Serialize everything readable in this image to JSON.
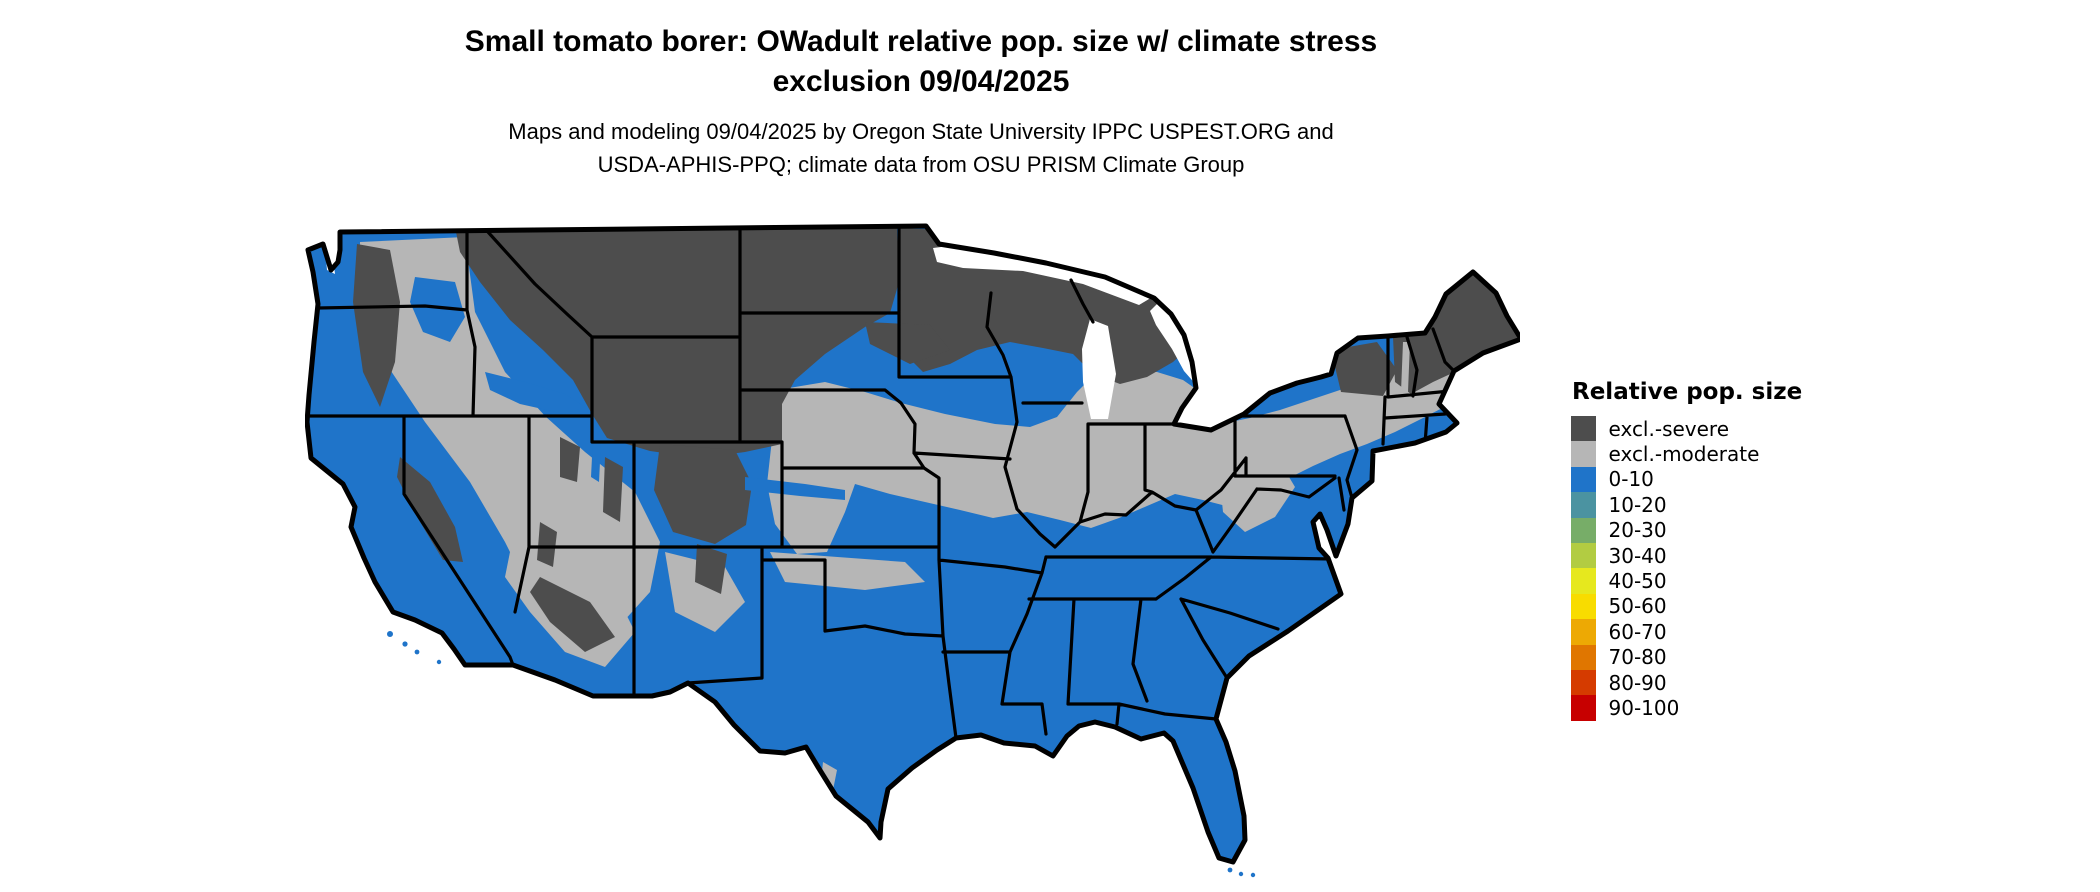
{
  "header": {
    "title_line1": "Small tomato borer: OWadult relative pop. size w/ climate stress",
    "title_line2": "exclusion 09/04/2025",
    "subtitle_line1": "Maps and modeling 09/04/2025 by Oregon State University IPPC USPEST.ORG and",
    "subtitle_line2": "USDA-APHIS-PPQ; climate data from OSU PRISM Climate Group"
  },
  "legend": {
    "title": "Relative pop. size",
    "items": [
      {
        "label": "excl.-severe",
        "color": "#4d4d4d"
      },
      {
        "label": "excl.-moderate",
        "color": "#b6b6b6"
      },
      {
        "label": "0-10",
        "color": "#1f74c9"
      },
      {
        "label": "10-20",
        "color": "#4b93a1"
      },
      {
        "label": "20-30",
        "color": "#77ad68"
      },
      {
        "label": "30-40",
        "color": "#b2cc42"
      },
      {
        "label": "40-50",
        "color": "#e6e81e"
      },
      {
        "label": "50-60",
        "color": "#f8dc00"
      },
      {
        "label": "60-70",
        "color": "#eda904"
      },
      {
        "label": "70-80",
        "color": "#e07600"
      },
      {
        "label": "80-90",
        "color": "#d53b00"
      },
      {
        "label": "90-100",
        "color": "#c70000"
      }
    ]
  },
  "map": {
    "region": "Contiguous United States",
    "colors": {
      "excl-severe": "#4d4d4d",
      "excl-moderate": "#b6b6b6",
      "pop-low": "#1f74c9",
      "map-border": "#000000",
      "water": "#ffffff"
    }
  }
}
